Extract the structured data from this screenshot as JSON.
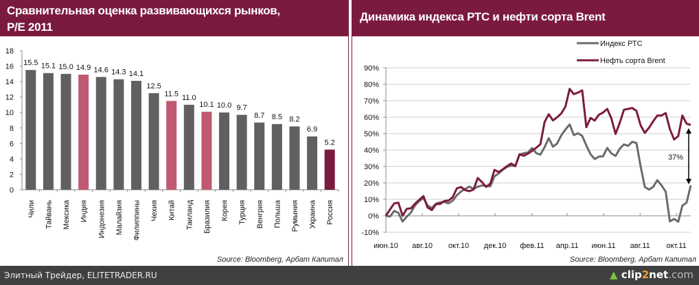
{
  "left_panel": {
    "title_line1": "Сравнительная оценка развивающихся рынков,",
    "title_line2": "P/E 2011",
    "source": "Source: Bloomberg, Арбат Капитал"
  },
  "right_panel": {
    "title": "Динамика индекса РТС и нефти сорта Brent",
    "source": "Source: Bloomberg, Арбат Капитал",
    "annotation": "37%"
  },
  "footer": {
    "text": "Элитный Трейдер, ELITETRADER.RU",
    "logo": "clip2net.com"
  },
  "colors": {
    "header": "#7b1a3f",
    "bar_default": "#606060",
    "bar_highlight": "#c05a72",
    "bar_russia": "#7b1a3f",
    "rts_line": "#6b6b6b",
    "brent_line": "#7b1a3f",
    "footer": "#404040"
  },
  "chart_data": [
    {
      "type": "bar",
      "title": "Сравнительная оценка развивающихся рынков, P/E 2011",
      "categories": [
        "Чили",
        "Тайвань",
        "Мексика",
        "Индия",
        "Индонезия",
        "Малайзия",
        "Филиппины",
        "Чехия",
        "Китай",
        "Таиланд",
        "Бразилия",
        "Корея",
        "Турция",
        "Венгрия",
        "Польша",
        "Румыния",
        "Украина",
        "Россия"
      ],
      "values": [
        15.5,
        15.1,
        15.0,
        14.9,
        14.6,
        14.3,
        14.1,
        12.5,
        11.5,
        11.0,
        10.1,
        10.0,
        9.7,
        8.7,
        8.5,
        8.2,
        6.9,
        5.2
      ],
      "value_labels": [
        "15.5",
        "15.1",
        "15.0",
        "14.9",
        "14.6",
        "14.3",
        "14.1",
        "12.5",
        "11.5",
        "11.0",
        "10.1",
        "10.0",
        "9.7",
        "8.7",
        "8.5",
        "8.2",
        "6.9",
        "5.2"
      ],
      "bar_color_keys": [
        "d",
        "d",
        "d",
        "h",
        "d",
        "d",
        "d",
        "d",
        "h",
        "d",
        "h",
        "d",
        "d",
        "d",
        "d",
        "d",
        "d",
        "r"
      ],
      "ylim": [
        0,
        18
      ],
      "yticks": [
        "0",
        "2",
        "4",
        "6",
        "8",
        "10",
        "12",
        "14",
        "16",
        "18"
      ],
      "grid": false
    },
    {
      "type": "line",
      "title": "Динамика индекса РТС и нефти сорта Brent",
      "x": [
        "2010-06-01",
        "2010-06-08",
        "2010-06-15",
        "2010-06-22",
        "2010-06-29",
        "2010-07-06",
        "2010-07-13",
        "2010-07-20",
        "2010-07-27",
        "2010-08-03",
        "2010-08-10",
        "2010-08-17",
        "2010-08-24",
        "2010-08-31",
        "2010-09-07",
        "2010-09-14",
        "2010-09-21",
        "2010-09-28",
        "2010-10-05",
        "2010-10-12",
        "2010-10-19",
        "2010-10-26",
        "2010-11-02",
        "2010-11-09",
        "2010-11-16",
        "2010-11-23",
        "2010-11-30",
        "2010-12-07",
        "2010-12-14",
        "2010-12-21",
        "2010-12-28",
        "2011-01-04",
        "2011-01-11",
        "2011-01-18",
        "2011-01-25",
        "2011-02-01",
        "2011-02-08",
        "2011-02-15",
        "2011-02-22",
        "2011-03-01",
        "2011-03-08",
        "2011-03-15",
        "2011-03-22",
        "2011-03-29",
        "2011-04-05",
        "2011-04-12",
        "2011-04-19",
        "2011-04-26",
        "2011-05-03",
        "2011-05-10",
        "2011-05-17",
        "2011-05-24",
        "2011-05-31",
        "2011-06-07",
        "2011-06-14",
        "2011-06-21",
        "2011-06-28",
        "2011-07-05",
        "2011-07-12",
        "2011-07-19",
        "2011-07-26",
        "2011-08-02",
        "2011-08-09",
        "2011-08-16",
        "2011-08-23",
        "2011-08-30",
        "2011-09-06",
        "2011-09-13",
        "2011-09-20",
        "2011-09-27",
        "2011-10-04",
        "2011-10-11",
        "2011-10-18",
        "2011-10-25"
      ],
      "series": [
        {
          "name": "Индекс РТС",
          "color_key": "rts_line",
          "values": [
            0,
            -0.4,
            3,
            1.8,
            -3.5,
            -0.5,
            2,
            6.5,
            9,
            10.8,
            6.2,
            4.8,
            7.4,
            8.2,
            8.4,
            7.6,
            9.2,
            12.5,
            14.8,
            16.4,
            17.7,
            16.4,
            17.7,
            18.4,
            18.2,
            17.9,
            24,
            25.8,
            28,
            29.8,
            30.5,
            30.3,
            37.2,
            38.1,
            38.5,
            41.2,
            38.1,
            37.2,
            41.7,
            47.2,
            42,
            44,
            49,
            52.5,
            55.6,
            49.1,
            50.2,
            48.6,
            42.8,
            37.5,
            34.5,
            36,
            36.2,
            41.3,
            37.9,
            36.4,
            40.8,
            43.4,
            42.6,
            45,
            44.3,
            30,
            17.5,
            15.9,
            17.6,
            21.7,
            18.5,
            14.7,
            -3.4,
            -1.9,
            -3.6,
            6.2,
            8,
            18.5
          ]
        },
        {
          "name": "Нефть сорта Brent",
          "color_key": "brent_line",
          "values": [
            0,
            3.9,
            7.6,
            8,
            0,
            4.2,
            4.6,
            7.4,
            9.8,
            12,
            5,
            3.5,
            7.1,
            7.2,
            9,
            9.3,
            11.3,
            16.7,
            17.5,
            15.6,
            15,
            16,
            23,
            20.5,
            17.6,
            19.6,
            27.9,
            26.6,
            28.3,
            30.2,
            31.8,
            30.2,
            37.4,
            36.5,
            37.8,
            39.5,
            41.4,
            43.5,
            57,
            61.8,
            58,
            59.9,
            62.3,
            66.4,
            77.2,
            74,
            74.9,
            76.3,
            53.9,
            59.5,
            57.9,
            61.5,
            62.8,
            65,
            59.2,
            49.8,
            56.6,
            64.5,
            65,
            65.6,
            63.8,
            55,
            50.4,
            53.6,
            57.5,
            61,
            61,
            62.5,
            52.7,
            46.4,
            48.5,
            61,
            56,
            55.3
          ]
        }
      ],
      "ylim": [
        -10,
        90
      ],
      "yticks": [
        "-10%",
        "0%",
        "10%",
        "20%",
        "30%",
        "40%",
        "50%",
        "60%",
        "70%",
        "80%",
        "90%"
      ],
      "xticks": [
        "июн.10",
        "авг.10",
        "окт.10",
        "дек.10",
        "фев.11",
        "апр.11",
        "июн.11",
        "авг.11",
        "окт.11"
      ],
      "xtick_dates": [
        "2010-06-01",
        "2010-08-01",
        "2010-10-01",
        "2010-12-01",
        "2011-02-01",
        "2011-04-01",
        "2011-06-01",
        "2011-08-01",
        "2011-10-01"
      ],
      "grid": true,
      "legend": "top-right"
    }
  ]
}
